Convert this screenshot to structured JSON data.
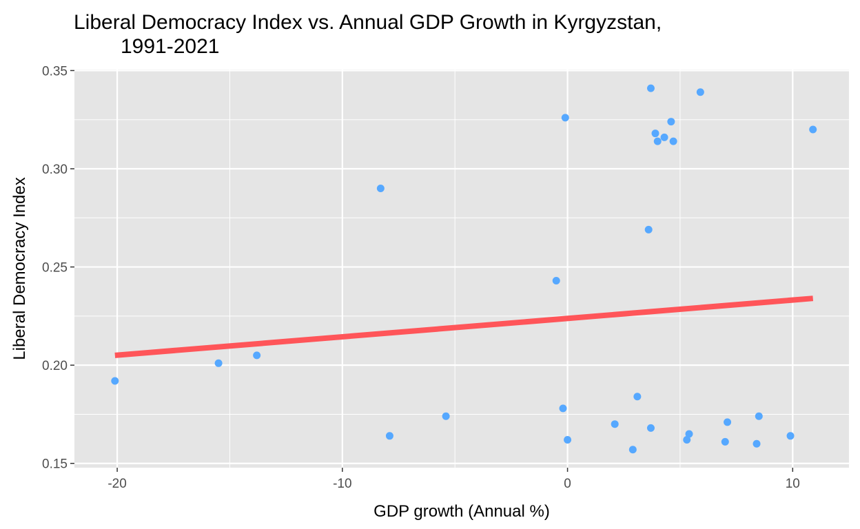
{
  "chart_data": {
    "type": "scatter",
    "title_lines": [
      "Liberal Democracy Index vs. Annual GDP Growth in Kyrgyzstan,",
      "1991-2021"
    ],
    "xlabel": "GDP growth (Annual %)",
    "ylabel": "Liberal Democracy Index",
    "xlim": [
      -21.9,
      12.5
    ],
    "ylim": [
      0.1478,
      0.3505
    ],
    "x_ticks": [
      -20,
      -10,
      0,
      10
    ],
    "x_tick_labels": [
      "-20",
      "-10",
      "0",
      "10"
    ],
    "y_ticks": [
      0.15,
      0.2,
      0.25,
      0.3,
      0.35
    ],
    "y_tick_labels": [
      "0.15",
      "0.20",
      "0.25",
      "0.30",
      "0.35"
    ],
    "grid": true,
    "background_color": "#e5e5e5",
    "grid_color": "#ffffff",
    "point_color": "#56a8ff",
    "trend_color": "#ff5559",
    "points": [
      {
        "x": -20.1,
        "y": 0.192
      },
      {
        "x": -15.5,
        "y": 0.201
      },
      {
        "x": -13.8,
        "y": 0.205
      },
      {
        "x": -8.3,
        "y": 0.29
      },
      {
        "x": -7.9,
        "y": 0.164
      },
      {
        "x": -5.4,
        "y": 0.174
      },
      {
        "x": -0.5,
        "y": 0.243
      },
      {
        "x": -0.2,
        "y": 0.178
      },
      {
        "x": -0.1,
        "y": 0.326
      },
      {
        "x": 0.0,
        "y": 0.162
      },
      {
        "x": 2.1,
        "y": 0.17
      },
      {
        "x": 2.9,
        "y": 0.157
      },
      {
        "x": 3.1,
        "y": 0.184
      },
      {
        "x": 3.6,
        "y": 0.269
      },
      {
        "x": 3.7,
        "y": 0.168
      },
      {
        "x": 3.7,
        "y": 0.341
      },
      {
        "x": 3.9,
        "y": 0.318
      },
      {
        "x": 4.0,
        "y": 0.314
      },
      {
        "x": 4.3,
        "y": 0.316
      },
      {
        "x": 4.6,
        "y": 0.324
      },
      {
        "x": 4.7,
        "y": 0.314
      },
      {
        "x": 5.3,
        "y": 0.162
      },
      {
        "x": 5.4,
        "y": 0.165
      },
      {
        "x": 5.9,
        "y": 0.339
      },
      {
        "x": 7.0,
        "y": 0.161
      },
      {
        "x": 7.1,
        "y": 0.171
      },
      {
        "x": 8.4,
        "y": 0.16
      },
      {
        "x": 8.5,
        "y": 0.174
      },
      {
        "x": 9.9,
        "y": 0.164
      },
      {
        "x": 10.9,
        "y": 0.32
      }
    ],
    "trend_line": {
      "x": [
        -20.1,
        10.9
      ],
      "y": [
        0.205,
        0.234
      ]
    }
  }
}
